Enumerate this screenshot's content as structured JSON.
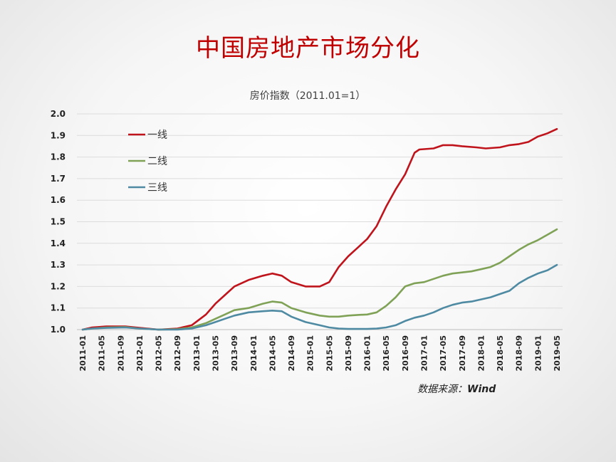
{
  "slide": {
    "title": "中国房地产市场分化",
    "source_label": "数据来源：",
    "source_value": "Wind"
  },
  "colors": {
    "title": "#c00000",
    "tier1": "#c0141c",
    "tier2": "#7fa257",
    "tier3": "#4f8aa3"
  },
  "chart_data": {
    "type": "line",
    "title": "房价指数（2011.01=1）",
    "xlabel": "",
    "ylabel": "",
    "ylim": [
      1.0,
      2.0
    ],
    "yticks": [
      "1.0",
      "1.1",
      "1.2",
      "1.3",
      "1.4",
      "1.5",
      "1.6",
      "1.7",
      "1.8",
      "1.9",
      "2.0"
    ],
    "xticks": [
      "2011-01",
      "2011-05",
      "2011-09",
      "2012-01",
      "2012-05",
      "2012-09",
      "2013-01",
      "2013-05",
      "2013-09",
      "2014-01",
      "2014-05",
      "2014-09",
      "2015-01",
      "2015-05",
      "2015-09",
      "2016-01",
      "2016-05",
      "2016-09",
      "2017-01",
      "2017-05",
      "2017-09",
      "2018-01",
      "2018-05",
      "2018-09",
      "2019-01",
      "2019-05"
    ],
    "grid": true,
    "legend": "upper-left",
    "series": [
      {
        "name": "一线",
        "color": "#c0141c",
        "points": [
          [
            "2011-01",
            1.0
          ],
          [
            "2011-03",
            1.01
          ],
          [
            "2011-06",
            1.015
          ],
          [
            "2011-10",
            1.015
          ],
          [
            "2012-01",
            1.008
          ],
          [
            "2012-05",
            1.0
          ],
          [
            "2012-09",
            1.005
          ],
          [
            "2012-12",
            1.02
          ],
          [
            "2013-03",
            1.07
          ],
          [
            "2013-05",
            1.12
          ],
          [
            "2013-07",
            1.16
          ],
          [
            "2013-09",
            1.2
          ],
          [
            "2013-12",
            1.23
          ],
          [
            "2014-03",
            1.25
          ],
          [
            "2014-05",
            1.26
          ],
          [
            "2014-07",
            1.25
          ],
          [
            "2014-09",
            1.22
          ],
          [
            "2014-12",
            1.2
          ],
          [
            "2015-03",
            1.2
          ],
          [
            "2015-05",
            1.22
          ],
          [
            "2015-07",
            1.29
          ],
          [
            "2015-09",
            1.34
          ],
          [
            "2015-11",
            1.38
          ],
          [
            "2016-01",
            1.42
          ],
          [
            "2016-03",
            1.48
          ],
          [
            "2016-05",
            1.57
          ],
          [
            "2016-07",
            1.65
          ],
          [
            "2016-09",
            1.72
          ],
          [
            "2016-11",
            1.82
          ],
          [
            "2016-12",
            1.835
          ],
          [
            "2017-03",
            1.84
          ],
          [
            "2017-05",
            1.855
          ],
          [
            "2017-07",
            1.855
          ],
          [
            "2017-09",
            1.85
          ],
          [
            "2017-12",
            1.845
          ],
          [
            "2018-02",
            1.84
          ],
          [
            "2018-05",
            1.845
          ],
          [
            "2018-07",
            1.855
          ],
          [
            "2018-09",
            1.86
          ],
          [
            "2018-11",
            1.87
          ],
          [
            "2019-01",
            1.895
          ],
          [
            "2019-03",
            1.91
          ],
          [
            "2019-05",
            1.93
          ]
        ]
      },
      {
        "name": "二线",
        "color": "#7fa257",
        "points": [
          [
            "2011-01",
            1.0
          ],
          [
            "2011-03",
            1.005
          ],
          [
            "2011-06",
            1.01
          ],
          [
            "2011-10",
            1.012
          ],
          [
            "2012-01",
            1.005
          ],
          [
            "2012-05",
            1.0
          ],
          [
            "2012-09",
            1.002
          ],
          [
            "2012-12",
            1.01
          ],
          [
            "2013-03",
            1.03
          ],
          [
            "2013-05",
            1.05
          ],
          [
            "2013-07",
            1.07
          ],
          [
            "2013-09",
            1.09
          ],
          [
            "2013-12",
            1.1
          ],
          [
            "2014-03",
            1.12
          ],
          [
            "2014-05",
            1.13
          ],
          [
            "2014-07",
            1.125
          ],
          [
            "2014-09",
            1.1
          ],
          [
            "2014-12",
            1.08
          ],
          [
            "2015-03",
            1.065
          ],
          [
            "2015-05",
            1.06
          ],
          [
            "2015-07",
            1.06
          ],
          [
            "2015-09",
            1.065
          ],
          [
            "2015-11",
            1.068
          ],
          [
            "2016-01",
            1.07
          ],
          [
            "2016-03",
            1.08
          ],
          [
            "2016-05",
            1.11
          ],
          [
            "2016-07",
            1.15
          ],
          [
            "2016-09",
            1.2
          ],
          [
            "2016-11",
            1.215
          ],
          [
            "2017-01",
            1.22
          ],
          [
            "2017-03",
            1.235
          ],
          [
            "2017-05",
            1.25
          ],
          [
            "2017-07",
            1.26
          ],
          [
            "2017-09",
            1.265
          ],
          [
            "2017-11",
            1.27
          ],
          [
            "2018-01",
            1.28
          ],
          [
            "2018-03",
            1.29
          ],
          [
            "2018-05",
            1.31
          ],
          [
            "2018-07",
            1.34
          ],
          [
            "2018-09",
            1.37
          ],
          [
            "2018-11",
            1.395
          ],
          [
            "2019-01",
            1.415
          ],
          [
            "2019-03",
            1.44
          ],
          [
            "2019-05",
            1.465
          ]
        ]
      },
      {
        "name": "三线",
        "color": "#4f8aa3",
        "points": [
          [
            "2011-01",
            1.0
          ],
          [
            "2011-03",
            1.005
          ],
          [
            "2011-06",
            1.008
          ],
          [
            "2011-10",
            1.01
          ],
          [
            "2012-01",
            1.005
          ],
          [
            "2012-05",
            1.0
          ],
          [
            "2012-09",
            1.0
          ],
          [
            "2012-12",
            1.005
          ],
          [
            "2013-03",
            1.02
          ],
          [
            "2013-05",
            1.035
          ],
          [
            "2013-07",
            1.05
          ],
          [
            "2013-09",
            1.065
          ],
          [
            "2013-12",
            1.08
          ],
          [
            "2014-03",
            1.085
          ],
          [
            "2014-05",
            1.088
          ],
          [
            "2014-07",
            1.085
          ],
          [
            "2014-09",
            1.06
          ],
          [
            "2014-12",
            1.035
          ],
          [
            "2015-03",
            1.02
          ],
          [
            "2015-05",
            1.01
          ],
          [
            "2015-07",
            1.005
          ],
          [
            "2015-09",
            1.003
          ],
          [
            "2015-11",
            1.003
          ],
          [
            "2016-01",
            1.003
          ],
          [
            "2016-03",
            1.005
          ],
          [
            "2016-05",
            1.01
          ],
          [
            "2016-07",
            1.02
          ],
          [
            "2016-09",
            1.04
          ],
          [
            "2016-11",
            1.055
          ],
          [
            "2017-01",
            1.065
          ],
          [
            "2017-03",
            1.08
          ],
          [
            "2017-05",
            1.1
          ],
          [
            "2017-07",
            1.115
          ],
          [
            "2017-09",
            1.125
          ],
          [
            "2017-11",
            1.13
          ],
          [
            "2018-01",
            1.14
          ],
          [
            "2018-03",
            1.15
          ],
          [
            "2018-05",
            1.165
          ],
          [
            "2018-07",
            1.18
          ],
          [
            "2018-09",
            1.215
          ],
          [
            "2018-11",
            1.24
          ],
          [
            "2019-01",
            1.26
          ],
          [
            "2019-03",
            1.275
          ],
          [
            "2019-05",
            1.3
          ]
        ]
      }
    ]
  }
}
